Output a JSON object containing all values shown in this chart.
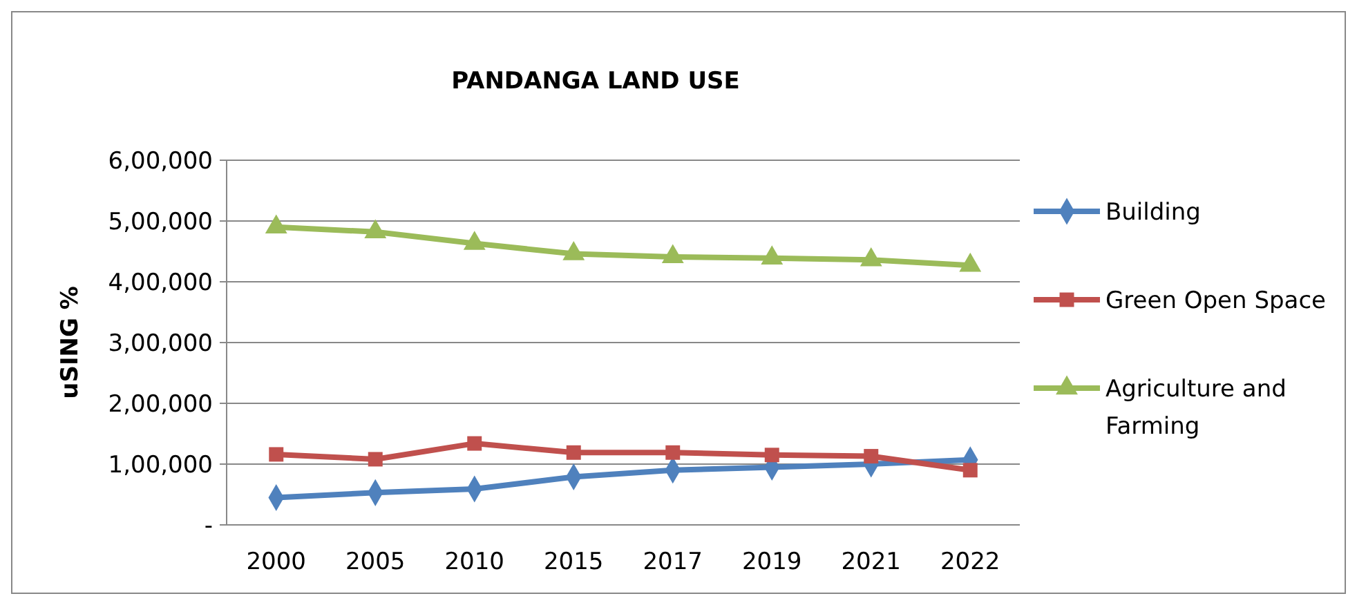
{
  "chart_data": {
    "type": "line",
    "title": "PANDANGA LAND USE",
    "ylabel": "uSING %",
    "categories": [
      "2000",
      "2005",
      "2010",
      "2015",
      "2017",
      "2019",
      "2021",
      "2022"
    ],
    "series": [
      {
        "name": "Building",
        "color": "#4f81bd",
        "marker": "diamond",
        "values": [
          45000,
          53000,
          59000,
          79000,
          90000,
          95000,
          100000,
          107000
        ]
      },
      {
        "name": "Green Open Space",
        "color": "#c0504d",
        "marker": "square",
        "values": [
          116000,
          108000,
          134000,
          119000,
          119000,
          115000,
          113000,
          90000
        ]
      },
      {
        "name": "Agriculture and Farming",
        "color": "#9bbb59",
        "marker": "triangle",
        "values": [
          490000,
          482000,
          463000,
          446000,
          441000,
          439000,
          436000,
          427000
        ]
      }
    ],
    "ylim": [
      0,
      600000
    ],
    "yticks": [
      {
        "value": 0,
        "label": "-"
      },
      {
        "value": 100000,
        "label": "1,00,000"
      },
      {
        "value": 200000,
        "label": "2,00,000"
      },
      {
        "value": 300000,
        "label": "3,00,000"
      },
      {
        "value": 400000,
        "label": "4,00,000"
      },
      {
        "value": 500000,
        "label": "5,00,000"
      },
      {
        "value": 600000,
        "label": "6,00,000"
      }
    ],
    "grid": "y",
    "legend": "right"
  }
}
